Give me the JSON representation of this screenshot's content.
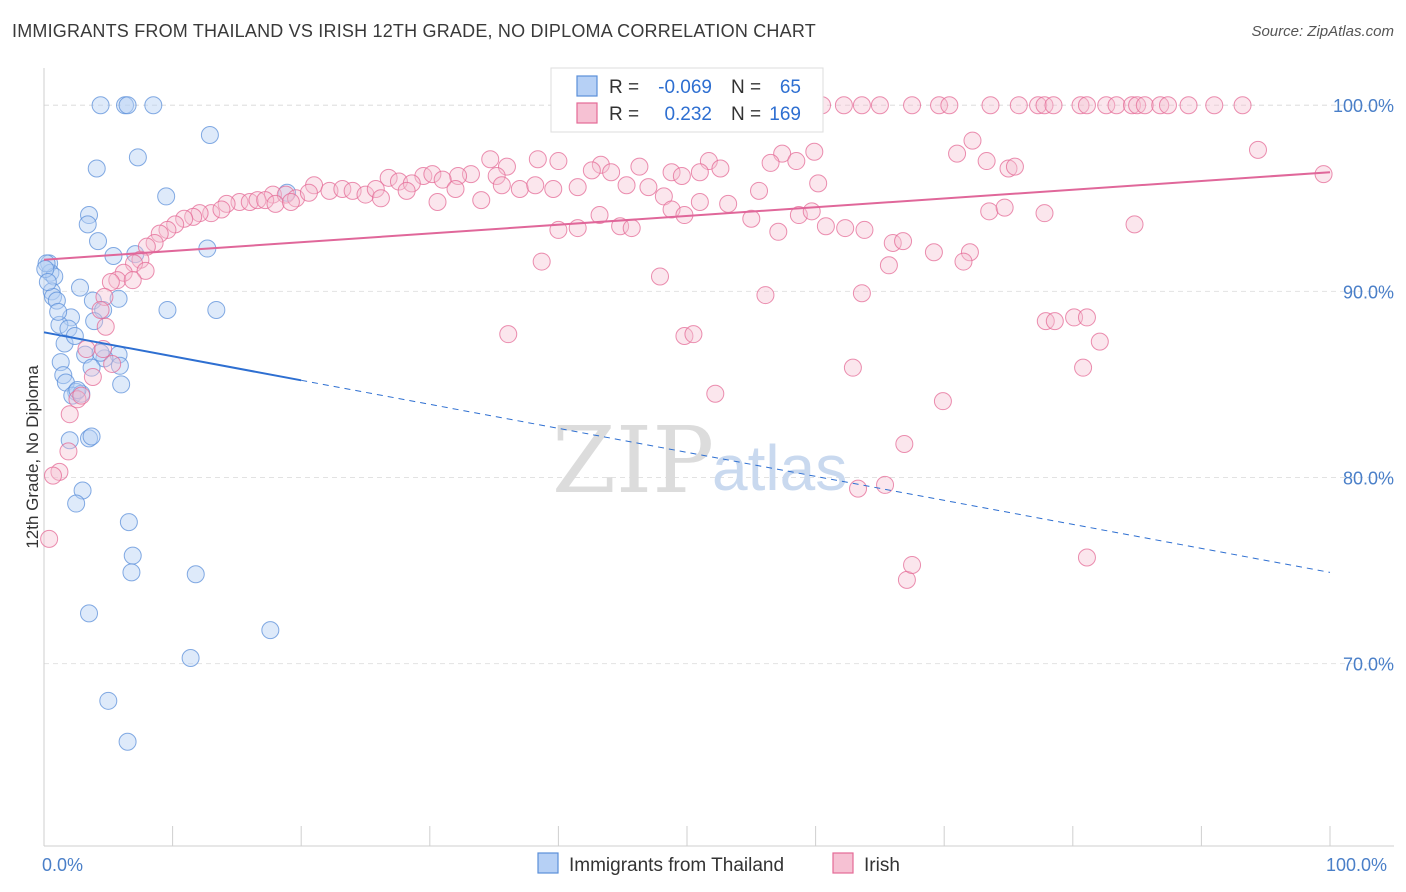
{
  "title": "IMMIGRANTS FROM THAILAND VS IRISH 12TH GRADE, NO DIPLOMA CORRELATION CHART",
  "source": "Source: ZipAtlas.com",
  "watermark": {
    "zip": "ZIP",
    "atlas": "atlas"
  },
  "colors": {
    "blue": "#5b8fd9",
    "blue_fill": "#b6d0f5",
    "blue_line": "#2e6fd1",
    "pink": "#e46a96",
    "pink_fill": "#f6c1d3",
    "pink_line": "#e0679a",
    "tick": "#4a7fc8"
  },
  "legend_top": {
    "rows": [
      {
        "r_label": "R =",
        "r_value": "-0.069",
        "n_label": "N =",
        "n_value": "65"
      },
      {
        "r_label": "R =",
        "r_value": "0.232",
        "n_label": "N =",
        "n_value": "169"
      }
    ]
  },
  "legend_bottom": [
    "Immigrants from Thailand",
    "Irish"
  ],
  "chart_data": {
    "type": "scatter",
    "title": "IMMIGRANTS FROM THAILAND VS IRISH 12TH GRADE, NO DIPLOMA CORRELATION CHART",
    "xlabel": "",
    "ylabel": "12th Grade, No Diploma",
    "xlim": [
      0,
      100
    ],
    "ylim": [
      60.2,
      102
    ],
    "x_ticks": [
      "0.0%",
      "100.0%"
    ],
    "y_ticks": [
      {
        "value": 100,
        "label": "100.0%"
      },
      {
        "value": 90,
        "label": "90.0%"
      },
      {
        "value": 80,
        "label": "80.0%"
      },
      {
        "value": 70,
        "label": "70.0%"
      }
    ],
    "grid": true,
    "series": [
      {
        "name": "Immigrants from Thailand",
        "r": -0.069,
        "n": 65,
        "trend": {
          "x0": 0.0,
          "y0": 87.8,
          "x1": 100,
          "y1": 74.9,
          "solid_to_x": 20
        },
        "points": [
          [
            4.4,
            100
          ],
          [
            6.3,
            100
          ],
          [
            6.5,
            100
          ],
          [
            8.5,
            100
          ],
          [
            12.9,
            98.4
          ],
          [
            7.3,
            97.2
          ],
          [
            4.1,
            96.6
          ],
          [
            9.5,
            95.1
          ],
          [
            3.5,
            94.1
          ],
          [
            3.4,
            93.6
          ],
          [
            4.2,
            92.7
          ],
          [
            12.7,
            92.3
          ],
          [
            0.4,
            91.5
          ],
          [
            0.5,
            91.0
          ],
          [
            0.8,
            90.8
          ],
          [
            5.4,
            91.9
          ],
          [
            7.1,
            92.0
          ],
          [
            0.2,
            91.5
          ],
          [
            0.6,
            90.0
          ],
          [
            2.8,
            90.2
          ],
          [
            0.7,
            89.7
          ],
          [
            1.0,
            89.5
          ],
          [
            3.8,
            89.5
          ],
          [
            5.8,
            89.6
          ],
          [
            4.6,
            89.0
          ],
          [
            9.6,
            89.0
          ],
          [
            13.4,
            89.0
          ],
          [
            2.1,
            88.6
          ],
          [
            1.2,
            88.2
          ],
          [
            1.9,
            88.0
          ],
          [
            1.6,
            87.2
          ],
          [
            3.2,
            86.6
          ],
          [
            5.8,
            86.6
          ],
          [
            4.7,
            86.4
          ],
          [
            1.3,
            86.2
          ],
          [
            3.7,
            85.9
          ],
          [
            5.9,
            86.0
          ],
          [
            1.5,
            85.5
          ],
          [
            1.7,
            85.1
          ],
          [
            2.5,
            84.6
          ],
          [
            6.0,
            85.0
          ],
          [
            2.2,
            84.4
          ],
          [
            2.9,
            84.5
          ],
          [
            3.5,
            82.1
          ],
          [
            3.7,
            82.2
          ],
          [
            2.0,
            82.0
          ],
          [
            3.0,
            79.3
          ],
          [
            2.5,
            78.6
          ],
          [
            6.6,
            77.6
          ],
          [
            6.9,
            75.8
          ],
          [
            6.8,
            74.9
          ],
          [
            11.8,
            74.8
          ],
          [
            3.5,
            72.7
          ],
          [
            17.6,
            71.8
          ],
          [
            11.4,
            70.3
          ],
          [
            5.0,
            68.0
          ],
          [
            6.5,
            65.8
          ],
          [
            18.9,
            95.3
          ],
          [
            0.1,
            91.2
          ],
          [
            0.3,
            90.5
          ],
          [
            1.1,
            88.9
          ],
          [
            2.4,
            87.6
          ],
          [
            4.4,
            86.7
          ],
          [
            2.6,
            84.7
          ],
          [
            3.9,
            88.4
          ]
        ]
      },
      {
        "name": "Irish",
        "r": 0.232,
        "n": 169,
        "trend": {
          "x0": 0.0,
          "y0": 91.7,
          "x1": 100,
          "y1": 96.4,
          "solid_to_x": 100
        },
        "points": [
          [
            60.5,
            100
          ],
          [
            62.2,
            100
          ],
          [
            63.6,
            100
          ],
          [
            65.0,
            100
          ],
          [
            67.5,
            100
          ],
          [
            69.6,
            100
          ],
          [
            70.4,
            100
          ],
          [
            73.6,
            100
          ],
          [
            75.8,
            100
          ],
          [
            77.3,
            100
          ],
          [
            77.8,
            100
          ],
          [
            78.5,
            100
          ],
          [
            80.6,
            100
          ],
          [
            81.1,
            100
          ],
          [
            82.6,
            100
          ],
          [
            83.4,
            100
          ],
          [
            84.6,
            100
          ],
          [
            85.0,
            100
          ],
          [
            85.6,
            100
          ],
          [
            86.8,
            100
          ],
          [
            87.4,
            100
          ],
          [
            89.0,
            100
          ],
          [
            91.0,
            100
          ],
          [
            93.2,
            100
          ],
          [
            72.2,
            98.1
          ],
          [
            71.0,
            97.4
          ],
          [
            73.3,
            97.0
          ],
          [
            75.0,
            96.6
          ],
          [
            75.5,
            96.7
          ],
          [
            94.4,
            97.6
          ],
          [
            99.5,
            96.3
          ],
          [
            51.7,
            97.0
          ],
          [
            57.4,
            97.4
          ],
          [
            59.9,
            97.5
          ],
          [
            58.5,
            97.0
          ],
          [
            56.5,
            96.9
          ],
          [
            52.6,
            96.6
          ],
          [
            43.3,
            96.8
          ],
          [
            46.3,
            96.7
          ],
          [
            48.8,
            96.4
          ],
          [
            51.0,
            96.4
          ],
          [
            49.6,
            96.2
          ],
          [
            38.4,
            97.1
          ],
          [
            40.0,
            97.0
          ],
          [
            42.6,
            96.5
          ],
          [
            34.7,
            97.1
          ],
          [
            36.0,
            96.7
          ],
          [
            33.2,
            96.3
          ],
          [
            32.2,
            96.2
          ],
          [
            29.5,
            96.2
          ],
          [
            26.8,
            96.1
          ],
          [
            27.6,
            95.9
          ],
          [
            28.6,
            95.8
          ],
          [
            30.2,
            96.3
          ],
          [
            31.0,
            96.0
          ],
          [
            35.2,
            96.2
          ],
          [
            35.6,
            95.7
          ],
          [
            37.0,
            95.5
          ],
          [
            38.2,
            95.7
          ],
          [
            39.6,
            95.5
          ],
          [
            41.5,
            95.6
          ],
          [
            44.1,
            96.4
          ],
          [
            45.3,
            95.7
          ],
          [
            47.0,
            95.6
          ],
          [
            48.2,
            95.1
          ],
          [
            51.0,
            94.8
          ],
          [
            53.2,
            94.7
          ],
          [
            55.6,
            95.4
          ],
          [
            60.2,
            95.8
          ],
          [
            21.0,
            95.7
          ],
          [
            22.2,
            95.4
          ],
          [
            23.2,
            95.5
          ],
          [
            24.0,
            95.4
          ],
          [
            25.0,
            95.2
          ],
          [
            25.8,
            95.5
          ],
          [
            26.2,
            95.0
          ],
          [
            28.2,
            95.4
          ],
          [
            30.6,
            94.8
          ],
          [
            32.0,
            95.5
          ],
          [
            34.0,
            94.9
          ],
          [
            17.8,
            95.2
          ],
          [
            18.8,
            95.2
          ],
          [
            19.6,
            95.0
          ],
          [
            20.6,
            95.3
          ],
          [
            15.2,
            94.8
          ],
          [
            16.0,
            94.8
          ],
          [
            16.6,
            94.9
          ],
          [
            17.2,
            94.9
          ],
          [
            18.0,
            94.7
          ],
          [
            19.2,
            94.8
          ],
          [
            14.2,
            94.7
          ],
          [
            13.0,
            94.2
          ],
          [
            13.8,
            94.4
          ],
          [
            12.1,
            94.2
          ],
          [
            11.6,
            94.0
          ],
          [
            10.9,
            93.9
          ],
          [
            10.2,
            93.6
          ],
          [
            9.6,
            93.3
          ],
          [
            9.0,
            93.1
          ],
          [
            8.6,
            92.6
          ],
          [
            8.0,
            92.4
          ],
          [
            7.5,
            91.7
          ],
          [
            7.0,
            91.5
          ],
          [
            6.2,
            91.0
          ],
          [
            5.7,
            90.6
          ],
          [
            5.2,
            90.5
          ],
          [
            4.7,
            89.7
          ],
          [
            4.4,
            89.0
          ],
          [
            4.8,
            88.1
          ],
          [
            58.7,
            94.1
          ],
          [
            59.7,
            94.3
          ],
          [
            55.0,
            93.9
          ],
          [
            57.1,
            93.2
          ],
          [
            60.8,
            93.5
          ],
          [
            62.3,
            93.4
          ],
          [
            63.8,
            93.3
          ],
          [
            43.2,
            94.1
          ],
          [
            44.8,
            93.5
          ],
          [
            48.8,
            94.4
          ],
          [
            49.8,
            94.1
          ],
          [
            45.7,
            93.4
          ],
          [
            40.0,
            93.3
          ],
          [
            41.5,
            93.4
          ],
          [
            66.0,
            92.6
          ],
          [
            66.8,
            92.7
          ],
          [
            69.2,
            92.1
          ],
          [
            72.0,
            92.1
          ],
          [
            73.5,
            94.3
          ],
          [
            74.7,
            94.5
          ],
          [
            84.8,
            93.6
          ],
          [
            77.8,
            94.2
          ],
          [
            38.7,
            91.6
          ],
          [
            47.9,
            90.8
          ],
          [
            56.1,
            89.8
          ],
          [
            63.6,
            89.9
          ],
          [
            65.7,
            91.4
          ],
          [
            71.5,
            91.6
          ],
          [
            77.9,
            88.4
          ],
          [
            78.6,
            88.4
          ],
          [
            80.1,
            88.6
          ],
          [
            81.1,
            88.6
          ],
          [
            82.1,
            87.3
          ],
          [
            36.1,
            87.7
          ],
          [
            49.8,
            87.6
          ],
          [
            50.5,
            87.7
          ],
          [
            62.9,
            85.9
          ],
          [
            69.9,
            84.1
          ],
          [
            80.8,
            85.9
          ],
          [
            52.2,
            84.5
          ],
          [
            66.9,
            81.8
          ],
          [
            65.4,
            79.6
          ],
          [
            63.3,
            79.4
          ],
          [
            67.1,
            74.5
          ],
          [
            67.5,
            75.3
          ],
          [
            81.1,
            75.7
          ],
          [
            2.0,
            83.4
          ],
          [
            1.9,
            81.4
          ],
          [
            1.2,
            80.3
          ],
          [
            0.7,
            80.1
          ],
          [
            0.4,
            76.7
          ],
          [
            2.6,
            84.2
          ],
          [
            3.8,
            85.4
          ],
          [
            4.6,
            86.9
          ],
          [
            3.3,
            86.9
          ],
          [
            5.3,
            86.1
          ],
          [
            2.9,
            84.4
          ],
          [
            7.9,
            91.1
          ],
          [
            6.9,
            90.6
          ]
        ]
      }
    ]
  }
}
